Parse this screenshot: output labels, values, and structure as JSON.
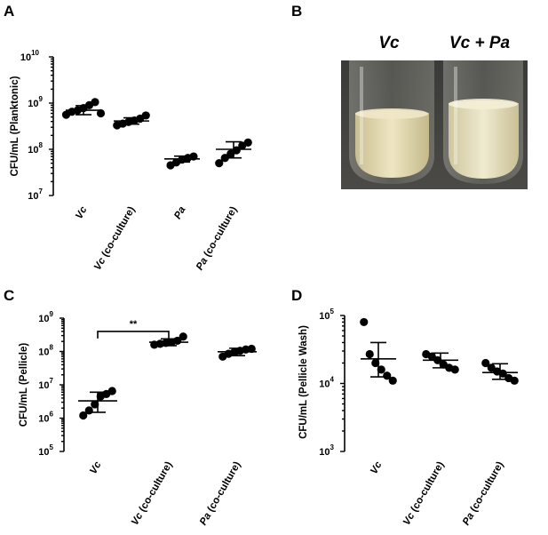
{
  "panel_labels": {
    "a": "A",
    "b": "B",
    "c": "C",
    "d": "D"
  },
  "photo": {
    "left_label": "Vc",
    "right_label": "Vc + Pa"
  },
  "chart_data": [
    {
      "type": "scatter",
      "panel": "A",
      "ylabel": "CFU/mL (Planktonic)",
      "yscale": "log",
      "ylim": [
        10000000,
        10000000000
      ],
      "yticks": [
        {
          "base": "10",
          "exp": "7"
        },
        {
          "base": "10",
          "exp": "8"
        },
        {
          "base": "10",
          "exp": "9"
        },
        {
          "base": "10",
          "exp": "10"
        }
      ],
      "categories": [
        {
          "parts": [
            {
              "t": "Vc",
              "i": true
            }
          ]
        },
        {
          "parts": [
            {
              "t": "Vc",
              "i": true
            },
            {
              "t": " (co-culture)",
              "i": false
            }
          ]
        },
        {
          "parts": [
            {
              "t": "Pa",
              "i": true
            }
          ]
        },
        {
          "parts": [
            {
              "t": "Pa",
              "i": true
            },
            {
              "t": " (co-culture)",
              "i": false
            }
          ]
        }
      ],
      "points": [
        [
          560000000,
          650000000,
          700000000,
          780000000,
          900000000,
          1050000000,
          600000000
        ],
        [
          330000000,
          360000000,
          390000000,
          420000000,
          460000000,
          540000000
        ],
        [
          45000000,
          52000000,
          60000000,
          65000000,
          70000000
        ],
        [
          50000000,
          65000000,
          80000000,
          95000000,
          120000000,
          140000000
        ]
      ],
      "means": [
        700000000,
        410000000,
        62000000,
        100000000
      ],
      "errors": [
        [
          560000000,
          880000000
        ],
        [
          350000000,
          480000000
        ],
        [
          53000000,
          71000000
        ],
        [
          65000000,
          145000000
        ]
      ],
      "annotations": []
    },
    {
      "type": "scatter",
      "panel": "C",
      "ylabel": "CFU/mL (Pellicle)",
      "yscale": "log",
      "ylim": [
        100000,
        1000000000
      ],
      "yticks": [
        {
          "base": "10",
          "exp": "5"
        },
        {
          "base": "10",
          "exp": "6"
        },
        {
          "base": "10",
          "exp": "7"
        },
        {
          "base": "10",
          "exp": "8"
        },
        {
          "base": "10",
          "exp": "9"
        }
      ],
      "categories": [
        {
          "parts": [
            {
              "t": "Vc",
              "i": true
            }
          ]
        },
        {
          "parts": [
            {
              "t": "Vc",
              "i": true
            },
            {
              "t": " (co-culture)",
              "i": false
            }
          ]
        },
        {
          "parts": [
            {
              "t": "Pa",
              "i": true
            },
            {
              "t": " (co-culture)",
              "i": false
            }
          ]
        }
      ],
      "points": [
        [
          1200000,
          1700000,
          2600000,
          4500000,
          5300000,
          6500000
        ],
        [
          160000000,
          170000000,
          180000000,
          190000000,
          210000000,
          280000000
        ],
        [
          70000000,
          85000000,
          95000000,
          105000000,
          115000000,
          120000000
        ]
      ],
      "means": [
        3300000,
        190000000,
        98000000
      ],
      "errors": [
        [
          1500000,
          6000000
        ],
        [
          150000000,
          240000000
        ],
        [
          75000000,
          125000000
        ]
      ],
      "annotations": [
        {
          "text": "**",
          "from": 0,
          "to": 1,
          "y": 400000000
        }
      ]
    },
    {
      "type": "scatter",
      "panel": "D",
      "ylabel": "CFU/mL (Pellicle Wash)",
      "yscale": "log",
      "ylim": [
        1000,
        100000
      ],
      "yticks": [
        {
          "base": "10",
          "exp": "3"
        },
        {
          "base": "10",
          "exp": "4"
        },
        {
          "base": "10",
          "exp": "5"
        }
      ],
      "categories": [
        {
          "parts": [
            {
              "t": "Vc",
              "i": true
            }
          ]
        },
        {
          "parts": [
            {
              "t": "Vc",
              "i": true
            },
            {
              "t": " (co-culture)",
              "i": false
            }
          ]
        },
        {
          "parts": [
            {
              "t": "Pa",
              "i": true
            },
            {
              "t": " (co-culture)",
              "i": false
            }
          ]
        }
      ],
      "points": [
        [
          80000,
          27000,
          20000,
          16000,
          13000,
          11000
        ],
        [
          27000,
          25000,
          22000,
          19000,
          17000,
          16000
        ],
        [
          20000,
          17000,
          15000,
          14000,
          12000,
          11000
        ]
      ],
      "means": [
        23000,
        22000,
        14500
      ],
      "errors": [
        [
          12500,
          40000
        ],
        [
          17000,
          28000
        ],
        [
          11500,
          19500
        ]
      ],
      "annotations": []
    }
  ]
}
